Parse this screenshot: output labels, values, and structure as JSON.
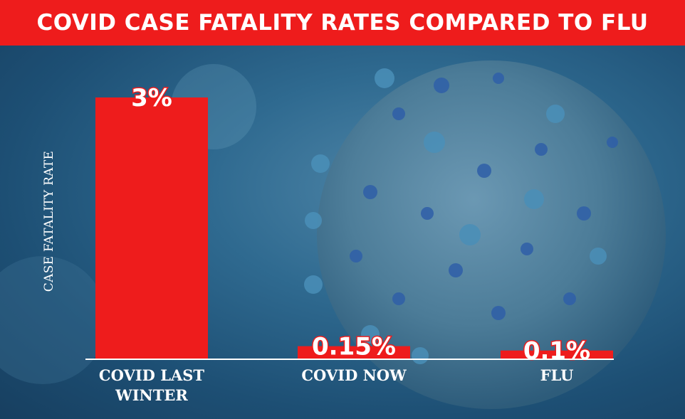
{
  "header": {
    "title": "COVID CASE FATALITY RATES COMPARED TO FLU"
  },
  "chart_data": {
    "type": "bar",
    "title": "COVID CASE FATALITY RATES COMPARED TO FLU",
    "ylabel": "CASE FATALITY RATE",
    "xlabel": "",
    "categories": [
      "COVID LAST WINTER",
      "COVID NOW",
      "FLU"
    ],
    "category_lines": [
      [
        "COVID LAST",
        "WINTER"
      ],
      [
        "COVID NOW"
      ],
      [
        "FLU"
      ]
    ],
    "values": [
      3,
      0.15,
      0.1
    ],
    "value_labels": [
      "3%",
      "0.15%",
      "0.1%"
    ],
    "ylim": [
      0,
      3.6
    ],
    "grid": false,
    "colors": {
      "bar": "#ee1c1c",
      "background": "#2f6a90",
      "text": "#ffffff",
      "baseline": "#ffffff"
    }
  }
}
